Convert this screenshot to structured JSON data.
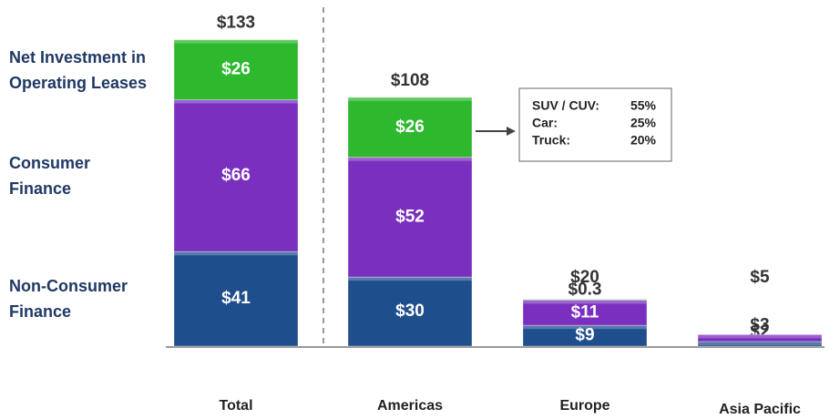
{
  "chart_data": {
    "type": "stacked_bar",
    "categories": [
      "Total",
      "Americas",
      "Europe",
      "Asia Pacific"
    ],
    "series": [
      {
        "name": "Non-Consumer Finance",
        "color": "#1f4e8c",
        "values": [
          41,
          30,
          9,
          2
        ],
        "value_labels": [
          "$41",
          "$30",
          "$9",
          "$2"
        ]
      },
      {
        "name": "Consumer Finance",
        "color": "#7b2fbf",
        "values": [
          66,
          52,
          11,
          3
        ],
        "value_labels": [
          "$66",
          "$52",
          "$11",
          "$3"
        ]
      },
      {
        "name": "Net Investment in Operating Leases",
        "color": "#2db82d",
        "values": [
          26,
          26,
          0.3,
          null
        ],
        "value_labels": [
          "$26",
          "$26",
          "$0.3",
          null
        ]
      }
    ],
    "totals": {
      "values": [
        133,
        108,
        20,
        5
      ],
      "value_labels": [
        "$133",
        "$108",
        "$20",
        "$5"
      ]
    },
    "annotation": {
      "labels": [
        "SUV / CUV:",
        "Car:",
        "Truck:"
      ],
      "values": [
        55,
        25,
        20
      ],
      "value_labels": [
        "55%",
        "25%",
        "20%"
      ]
    },
    "ylim": [
      0,
      140
    ]
  }
}
